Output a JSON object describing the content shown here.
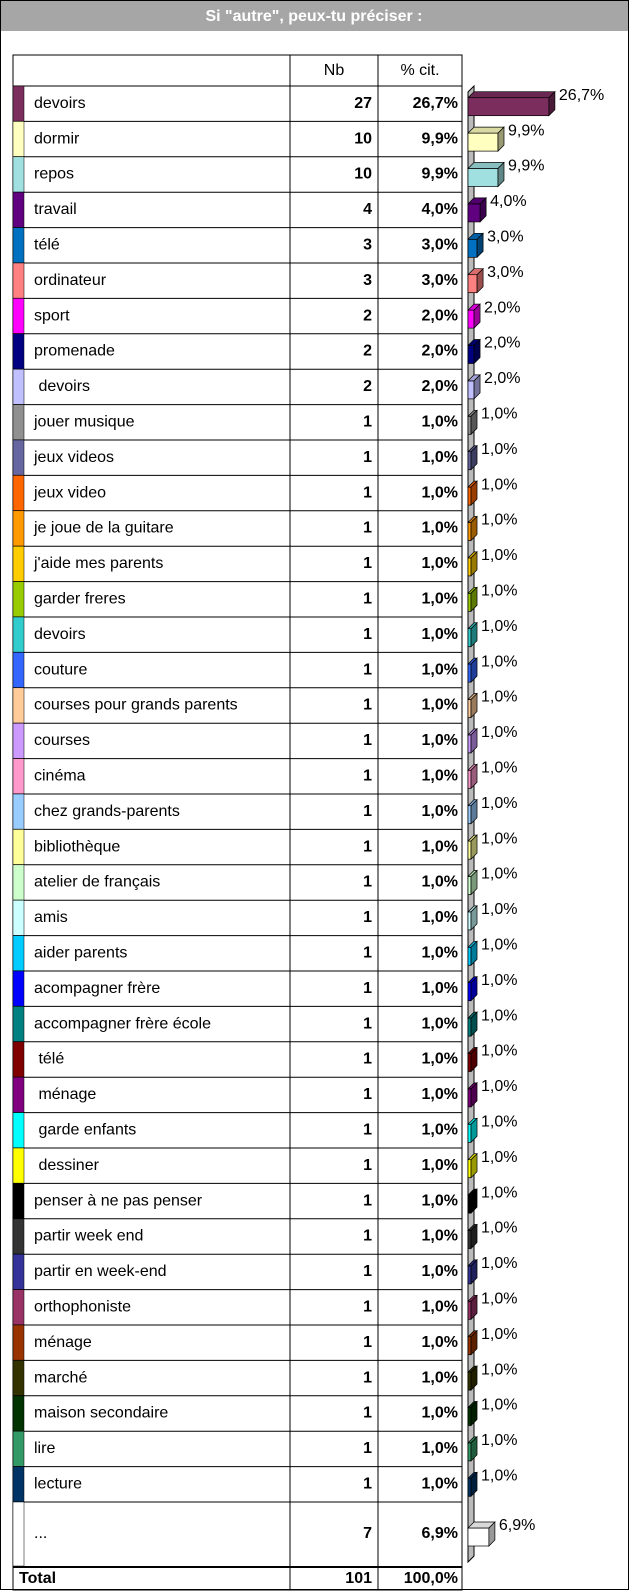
{
  "title": "Si \"autre\", peux-tu préciser :",
  "table": {
    "headers": [
      "Nb",
      "% cit."
    ],
    "rows": [
      {
        "label": "devoirs",
        "color": "#7b2d5e",
        "nb": 27,
        "pct": 26.7,
        "pct_label": "26,7%"
      },
      {
        "label": "dormir",
        "color": "#ffffc0",
        "nb": 10,
        "pct": 9.9,
        "pct_label": "9,9%"
      },
      {
        "label": "repos",
        "color": "#a0e0e0",
        "nb": 10,
        "pct": 9.9,
        "pct_label": "9,9%"
      },
      {
        "label": "travail",
        "color": "#600080",
        "nb": 4,
        "pct": 4.0,
        "pct_label": "4,0%"
      },
      {
        "label": "télé",
        "color": "#0070c0",
        "nb": 3,
        "pct": 3.0,
        "pct_label": "3,0%"
      },
      {
        "label": "ordinateur",
        "color": "#ff8080",
        "nb": 3,
        "pct": 3.0,
        "pct_label": "3,0%"
      },
      {
        "label": "sport",
        "color": "#ff00ff",
        "nb": 2,
        "pct": 2.0,
        "pct_label": "2,0%"
      },
      {
        "label": "promenade",
        "color": "#000080",
        "nb": 2,
        "pct": 2.0,
        "pct_label": "2,0%"
      },
      {
        "label": " devoirs",
        "color": "#c0c0ff",
        "nb": 2,
        "pct": 2.0,
        "pct_label": "2,0%"
      },
      {
        "label": "jouer musique",
        "color": "#909090",
        "nb": 1,
        "pct": 1.0,
        "pct_label": "1,0%"
      },
      {
        "label": "jeux videos",
        "color": "#6666a0",
        "nb": 1,
        "pct": 1.0,
        "pct_label": "1,0%"
      },
      {
        "label": "jeux video",
        "color": "#ff6600",
        "nb": 1,
        "pct": 1.0,
        "pct_label": "1,0%"
      },
      {
        "label": "je joue de la guitare",
        "color": "#ff9900",
        "nb": 1,
        "pct": 1.0,
        "pct_label": "1,0%"
      },
      {
        "label": "j'aide mes parents",
        "color": "#ffcc00",
        "nb": 1,
        "pct": 1.0,
        "pct_label": "1,0%"
      },
      {
        "label": "garder freres",
        "color": "#99cc00",
        "nb": 1,
        "pct": 1.0,
        "pct_label": "1,0%"
      },
      {
        "label": "devoirs",
        "color": "#33cccc",
        "nb": 1,
        "pct": 1.0,
        "pct_label": "1,0%"
      },
      {
        "label": "couture",
        "color": "#3366ff",
        "nb": 1,
        "pct": 1.0,
        "pct_label": "1,0%"
      },
      {
        "label": "courses pour grands parents",
        "color": "#ffcc99",
        "nb": 1,
        "pct": 1.0,
        "pct_label": "1,0%"
      },
      {
        "label": "courses",
        "color": "#cc99ff",
        "nb": 1,
        "pct": 1.0,
        "pct_label": "1,0%"
      },
      {
        "label": "cinéma",
        "color": "#ff99cc",
        "nb": 1,
        "pct": 1.0,
        "pct_label": "1,0%"
      },
      {
        "label": "chez grands-parents",
        "color": "#99ccff",
        "nb": 1,
        "pct": 1.0,
        "pct_label": "1,0%"
      },
      {
        "label": "bibliothèque",
        "color": "#ffff99",
        "nb": 1,
        "pct": 1.0,
        "pct_label": "1,0%"
      },
      {
        "label": "atelier de français",
        "color": "#ccffcc",
        "nb": 1,
        "pct": 1.0,
        "pct_label": "1,0%"
      },
      {
        "label": "amis",
        "color": "#ccffff",
        "nb": 1,
        "pct": 1.0,
        "pct_label": "1,0%"
      },
      {
        "label": "aider parents",
        "color": "#00ccff",
        "nb": 1,
        "pct": 1.0,
        "pct_label": "1,0%"
      },
      {
        "label": "acompagner frère",
        "color": "#0000ff",
        "nb": 1,
        "pct": 1.0,
        "pct_label": "1,0%"
      },
      {
        "label": "accompagner frère école",
        "color": "#008080",
        "nb": 1,
        "pct": 1.0,
        "pct_label": "1,0%"
      },
      {
        "label": " télé",
        "color": "#800000",
        "nb": 1,
        "pct": 1.0,
        "pct_label": "1,0%"
      },
      {
        "label": " ménage",
        "color": "#800080",
        "nb": 1,
        "pct": 1.0,
        "pct_label": "1,0%"
      },
      {
        "label": " garde enfants",
        "color": "#00ffff",
        "nb": 1,
        "pct": 1.0,
        "pct_label": "1,0%"
      },
      {
        "label": " dessiner",
        "color": "#ffff00",
        "nb": 1,
        "pct": 1.0,
        "pct_label": "1,0%"
      },
      {
        "label": "penser à ne pas penser",
        "color": "#000000",
        "nb": 1,
        "pct": 1.0,
        "pct_label": "1,0%"
      },
      {
        "label": "partir week end",
        "color": "#333333",
        "nb": 1,
        "pct": 1.0,
        "pct_label": "1,0%"
      },
      {
        "label": "partir en week-end",
        "color": "#333399",
        "nb": 1,
        "pct": 1.0,
        "pct_label": "1,0%"
      },
      {
        "label": "orthophoniste",
        "color": "#993366",
        "nb": 1,
        "pct": 1.0,
        "pct_label": "1,0%"
      },
      {
        "label": "ménage",
        "color": "#993300",
        "nb": 1,
        "pct": 1.0,
        "pct_label": "1,0%"
      },
      {
        "label": "marché",
        "color": "#333300",
        "nb": 1,
        "pct": 1.0,
        "pct_label": "1,0%"
      },
      {
        "label": "maison secondaire",
        "color": "#003300",
        "nb": 1,
        "pct": 1.0,
        "pct_label": "1,0%"
      },
      {
        "label": "lire",
        "color": "#339966",
        "nb": 1,
        "pct": 1.0,
        "pct_label": "1,0%"
      },
      {
        "label": "lecture",
        "color": "#003366",
        "nb": 1,
        "pct": 1.0,
        "pct_label": "1,0%"
      },
      {
        "label": "...",
        "color": "#ffffff",
        "nb": 7,
        "pct": 6.9,
        "pct_label": "6,9%"
      }
    ],
    "total": {
      "label": "Total",
      "nb": 101,
      "pct_label": "100,0%"
    }
  }
}
